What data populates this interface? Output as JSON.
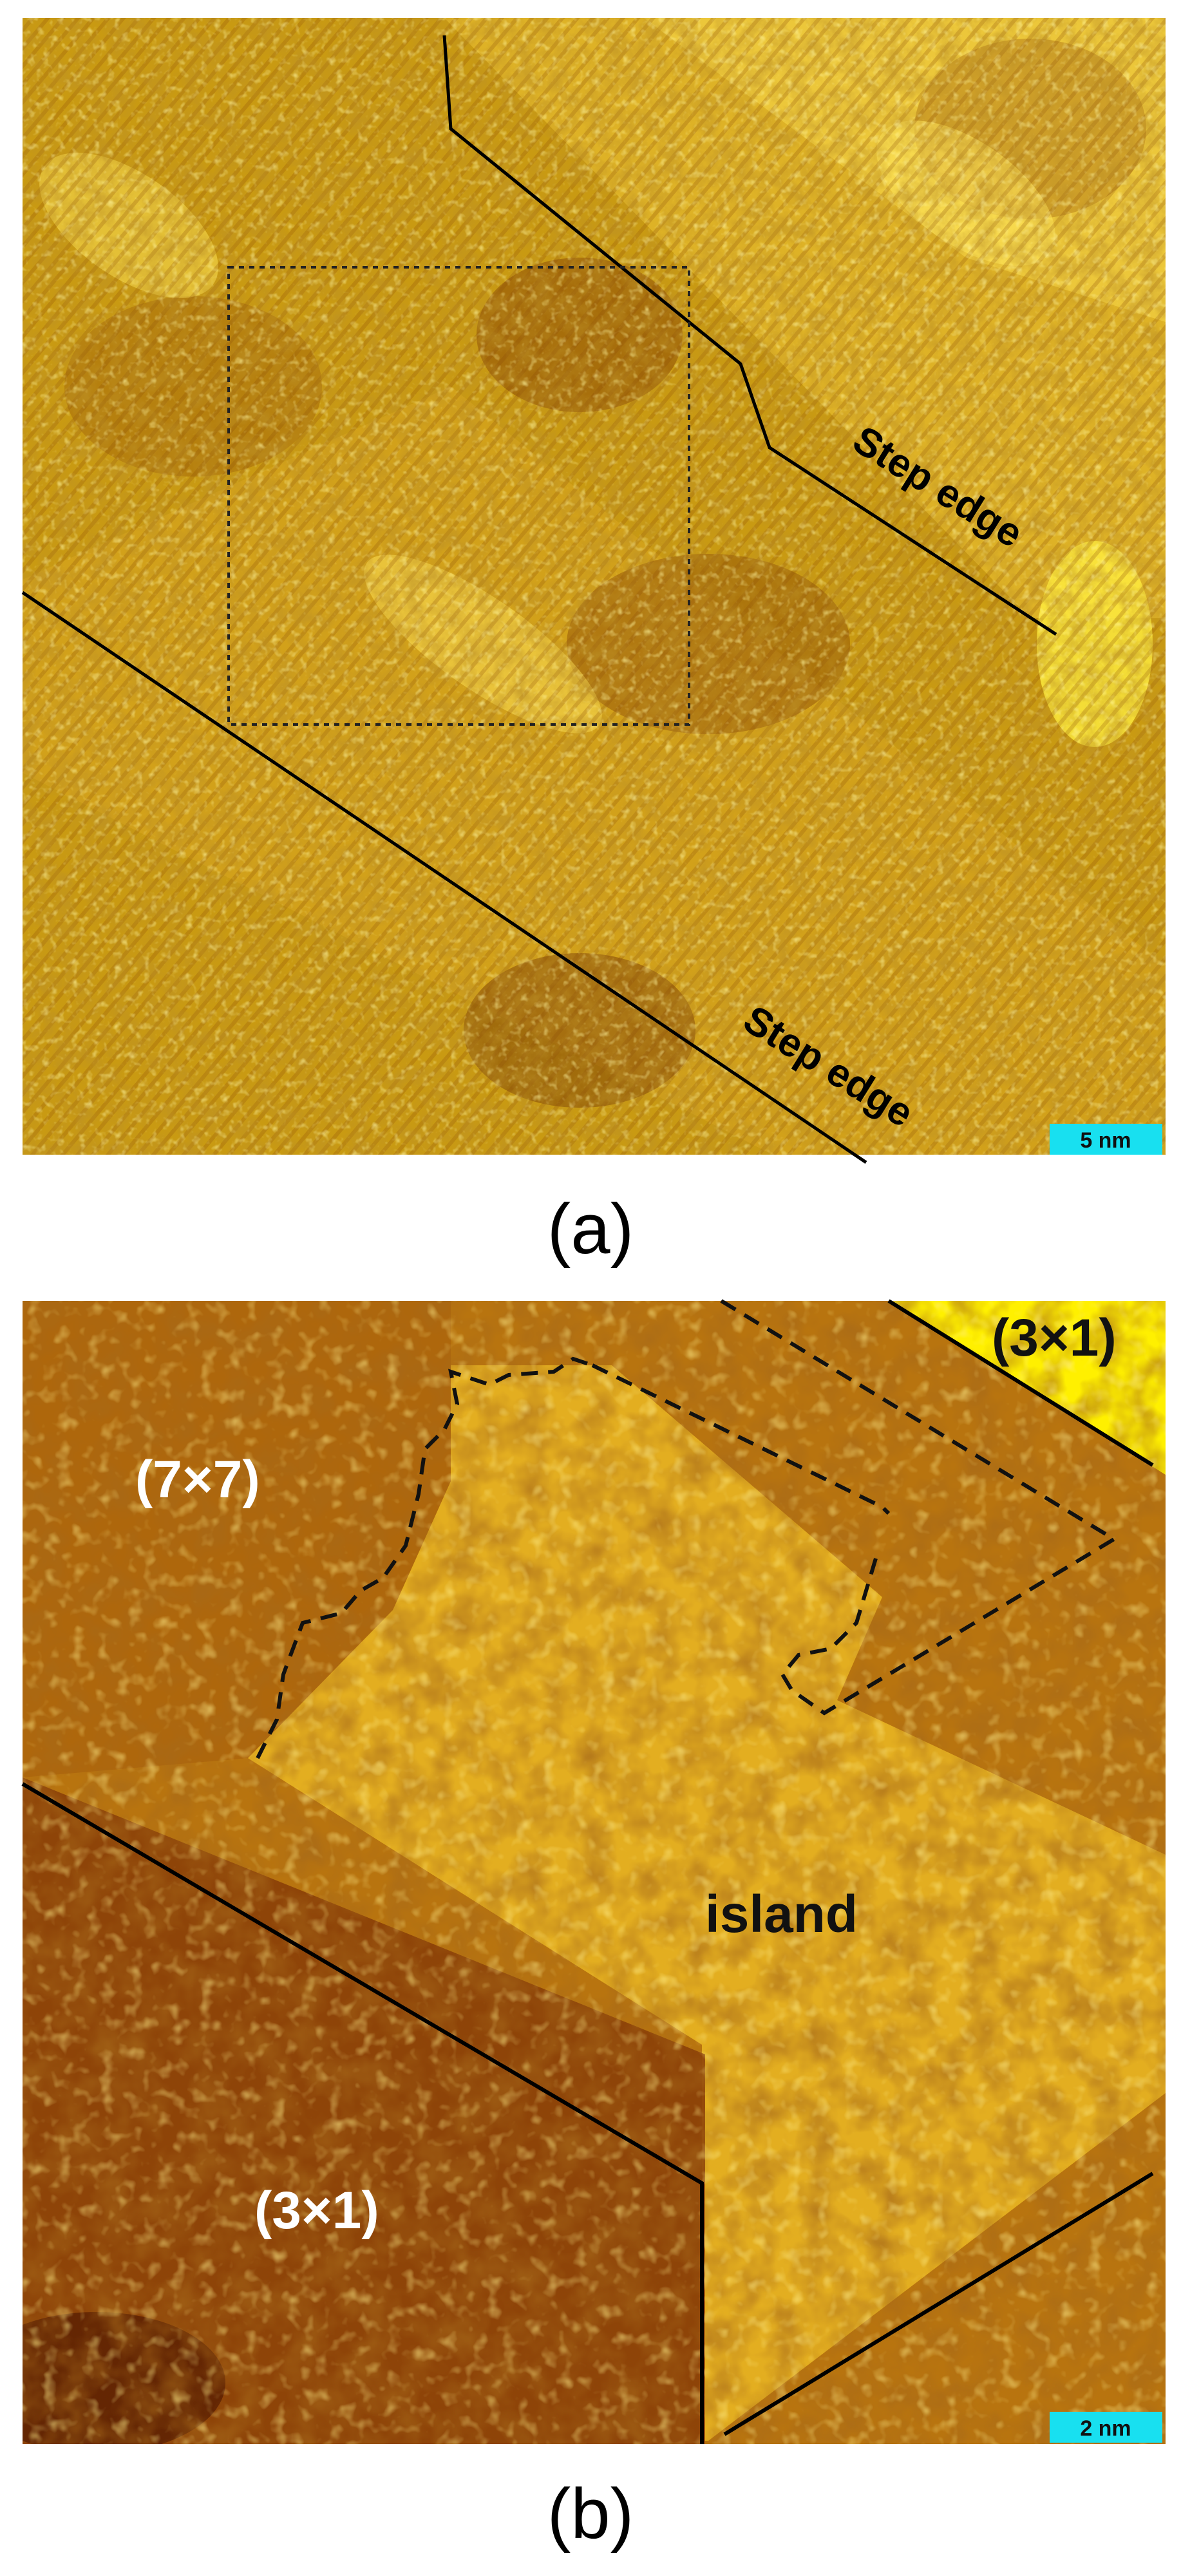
{
  "figure": {
    "panel_a": {
      "caption": "(a)",
      "labels": {
        "step_edge_upper": "Step edge",
        "step_edge_lower": "Step edge"
      },
      "scale_bar": "5 nm",
      "colors": {
        "surface_base": "#c99a12",
        "bright": "#ffe95a",
        "dark": "#7a3d06",
        "scale_bar_bg": "#18e0f0"
      }
    },
    "panel_b": {
      "caption": "(b)",
      "labels": {
        "top_right": "(3×1)",
        "left": "(7×7)",
        "island": "island",
        "bottom_left": "(3×1)"
      },
      "scale_bar": "2 nm",
      "colors": {
        "surface_base": "#b8740f",
        "bright": "#ffe100",
        "dark": "#5a1f03",
        "scale_bar_bg": "#18e0f0"
      }
    }
  }
}
